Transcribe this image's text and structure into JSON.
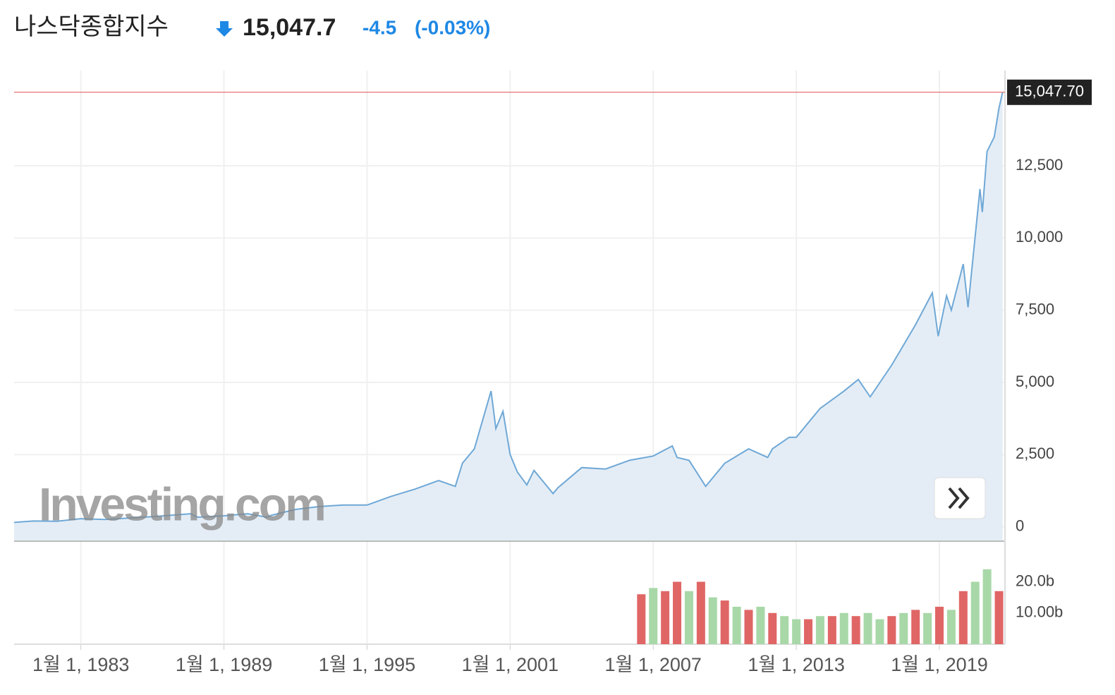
{
  "chart_data": {
    "type": "line",
    "title": "나스닥종합지수",
    "price_label": "15,047.7",
    "change": "-4.5",
    "change_pct": "(-0.03%)",
    "last_label": "15,047.70",
    "watermark": "Investing.com",
    "color": "#6fa8d6",
    "area_color": "#e4edf6",
    "last_line_color": "#e05050",
    "grid": true,
    "x": [
      1980.2,
      1981,
      1982,
      1983,
      1984,
      1985,
      1986,
      1987.6,
      1987.9,
      1989,
      1990,
      1990.8,
      1991,
      1992,
      1993,
      1994,
      1995,
      1996,
      1997,
      1998,
      1998.7,
      1999,
      1999.5,
      2000.2,
      2000.4,
      2000.7,
      2001,
      2001.3,
      2001.7,
      2002,
      2002.8,
      2003,
      2004,
      2005,
      2006,
      2007,
      2007.8,
      2008,
      2008.5,
      2009.2,
      2010,
      2011,
      2011.8,
      2012,
      2012.7,
      2013,
      2014,
      2015,
      2015.6,
      2016.1,
      2017,
      2018,
      2018.7,
      2018.95,
      2019.3,
      2019.5,
      2020,
      2020.2,
      2020.7,
      2020.8,
      2021,
      2021.3,
      2021.5,
      2021.65
    ],
    "values": [
      150,
      200,
      190,
      280,
      250,
      300,
      350,
      450,
      330,
      380,
      450,
      330,
      400,
      600,
      700,
      750,
      750,
      1050,
      1300,
      1600,
      1400,
      2200,
      2700,
      4700,
      3400,
      4000,
      2500,
      1900,
      1450,
      1950,
      1150,
      1350,
      2050,
      2000,
      2300,
      2450,
      2800,
      2400,
      2300,
      1400,
      2200,
      2700,
      2400,
      2700,
      3100,
      3100,
      4100,
      4700,
      5100,
      4500,
      5600,
      7000,
      8100,
      6600,
      8000,
      7500,
      9100,
      7600,
      11700,
      10900,
      13000,
      13500,
      14500,
      15047.7
    ],
    "xlim": [
      1980.2,
      2021.75
    ],
    "xticks": [
      {
        "value": 1983,
        "label": "1월 1, 1983"
      },
      {
        "value": 1989,
        "label": "1월 1, 1989"
      },
      {
        "value": 1995,
        "label": "1월 1, 1995"
      },
      {
        "value": 2001,
        "label": "1월 1, 2001"
      },
      {
        "value": 2007,
        "label": "1월 1, 2007"
      },
      {
        "value": 2013,
        "label": "1월 1, 2013"
      },
      {
        "value": 2019,
        "label": "1월 1, 2019"
      }
    ],
    "ylim": [
      -500,
      15800
    ],
    "yticks": [
      0,
      {
        "value": 2500,
        "label": "2,500"
      },
      {
        "value": 5000,
        "label": "5,000"
      },
      {
        "value": 7500,
        "label": "7,500"
      },
      {
        "value": 10000,
        "label": "10,000"
      },
      {
        "value": 12500,
        "label": "12,500"
      }
    ],
    "volume": {
      "x": [
        2006.5,
        2007,
        2007.5,
        2008,
        2008.5,
        2009,
        2009.5,
        2010,
        2010.5,
        2011,
        2011.5,
        2012,
        2012.5,
        2013,
        2013.5,
        2014,
        2014.5,
        2015,
        2015.5,
        2016,
        2016.5,
        2017,
        2017.5,
        2018,
        2018.5,
        2019,
        2019.5,
        2020,
        2020.5,
        2021,
        2021.5
      ],
      "values": [
        16,
        18,
        17,
        20,
        17,
        20,
        15,
        14,
        12,
        11,
        12,
        10,
        9,
        8,
        8,
        9,
        9,
        10,
        9,
        10,
        8,
        9,
        10,
        11,
        10,
        12,
        11,
        17,
        20,
        24,
        17
      ],
      "colors": [
        "#e06666",
        "#a8d8a8",
        "#e06666",
        "#e06666",
        "#a8d8a8",
        "#e06666",
        "#a8d8a8",
        "#e06666",
        "#a8d8a8",
        "#e06666",
        "#a8d8a8",
        "#e06666",
        "#a8d8a8",
        "#a8d8a8",
        "#e06666",
        "#a8d8a8",
        "#e06666",
        "#a8d8a8",
        "#e06666",
        "#a8d8a8",
        "#a8d8a8",
        "#e06666",
        "#a8d8a8",
        "#e06666",
        "#a8d8a8",
        "#e06666",
        "#a8d8a8",
        "#e06666",
        "#a8d8a8",
        "#a8d8a8",
        "#e06666"
      ],
      "ylim": [
        0,
        33
      ],
      "yticks": [
        {
          "value": 10,
          "label": "10.00b"
        },
        {
          "value": 20,
          "label": "20.0b"
        }
      ]
    }
  }
}
